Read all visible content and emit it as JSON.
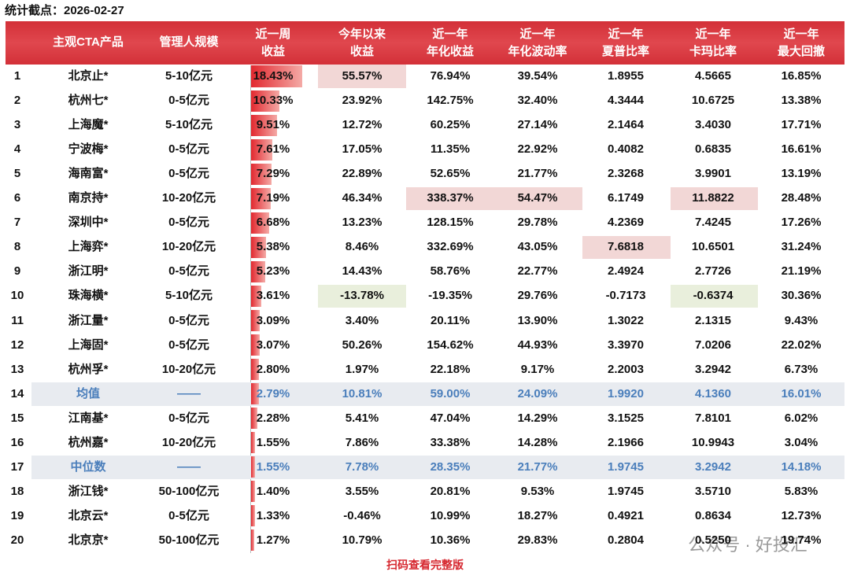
{
  "header": {
    "date_label": "统计截点：2026-02-27"
  },
  "table": {
    "columns": [
      [
        "主观CTA产品"
      ],
      [
        "管理人规模"
      ],
      [
        "近一周",
        "收益"
      ],
      [
        "今年以来",
        "收益"
      ],
      [
        "近一年",
        "年化收益"
      ],
      [
        "近一年",
        "年化波动率"
      ],
      [
        "近一年",
        "夏普比率"
      ],
      [
        "近一年",
        "卡玛比率"
      ],
      [
        "近一年",
        "最大回撤"
      ]
    ],
    "rows": [
      [
        "1",
        "北京止*",
        "5-10亿元",
        "18.43%",
        "55.57%",
        "76.94%",
        "39.54%",
        "1.8955",
        "4.5665",
        "16.85%"
      ],
      [
        "2",
        "杭州七*",
        "0-5亿元",
        "10.33%",
        "23.92%",
        "142.75%",
        "32.40%",
        "4.3444",
        "10.6725",
        "13.38%"
      ],
      [
        "3",
        "上海魔*",
        "5-10亿元",
        "9.51%",
        "12.72%",
        "60.25%",
        "27.14%",
        "2.1464",
        "3.4030",
        "17.71%"
      ],
      [
        "4",
        "宁波梅*",
        "0-5亿元",
        "7.61%",
        "17.05%",
        "11.35%",
        "22.92%",
        "0.4082",
        "0.6835",
        "16.61%"
      ],
      [
        "5",
        "海南富*",
        "0-5亿元",
        "7.29%",
        "22.89%",
        "52.65%",
        "21.77%",
        "2.3268",
        "3.9901",
        "13.19%"
      ],
      [
        "6",
        "南京持*",
        "10-20亿元",
        "7.19%",
        "46.34%",
        "338.37%",
        "54.47%",
        "6.1749",
        "11.8822",
        "28.48%"
      ],
      [
        "7",
        "深圳中*",
        "0-5亿元",
        "6.68%",
        "13.23%",
        "128.15%",
        "29.78%",
        "4.2369",
        "7.4245",
        "17.26%"
      ],
      [
        "8",
        "上海弈*",
        "10-20亿元",
        "5.38%",
        "8.46%",
        "332.69%",
        "43.05%",
        "7.6818",
        "10.6501",
        "31.24%"
      ],
      [
        "9",
        "浙江明*",
        "0-5亿元",
        "5.23%",
        "14.43%",
        "58.76%",
        "22.77%",
        "2.4924",
        "2.7726",
        "21.19%"
      ],
      [
        "10",
        "珠海横*",
        "5-10亿元",
        "3.61%",
        "-13.78%",
        "-19.35%",
        "29.76%",
        "-0.7173",
        "-0.6374",
        "30.36%"
      ],
      [
        "11",
        "浙江量*",
        "0-5亿元",
        "3.09%",
        "3.40%",
        "20.11%",
        "13.90%",
        "1.3022",
        "2.1315",
        "9.43%"
      ],
      [
        "12",
        "上海固*",
        "0-5亿元",
        "3.07%",
        "50.26%",
        "154.62%",
        "44.93%",
        "3.3970",
        "7.0206",
        "22.02%"
      ],
      [
        "13",
        "杭州孚*",
        "10-20亿元",
        "2.80%",
        "1.97%",
        "22.18%",
        "9.17%",
        "2.2003",
        "3.2942",
        "6.73%"
      ],
      [
        "14",
        "均值",
        "——",
        "2.79%",
        "10.81%",
        "59.00%",
        "24.09%",
        "1.9920",
        "4.1360",
        "16.01%"
      ],
      [
        "15",
        "江南基*",
        "0-5亿元",
        "2.28%",
        "5.41%",
        "47.04%",
        "14.29%",
        "3.1525",
        "7.8101",
        "6.02%"
      ],
      [
        "16",
        "杭州嘉*",
        "10-20亿元",
        "1.55%",
        "7.86%",
        "33.38%",
        "14.28%",
        "2.1966",
        "10.9943",
        "3.04%"
      ],
      [
        "17",
        "中位数",
        "——",
        "1.55%",
        "7.78%",
        "28.35%",
        "21.77%",
        "1.9745",
        "3.2942",
        "14.18%"
      ],
      [
        "18",
        "浙江钱*",
        "50-100亿元",
        "1.40%",
        "3.55%",
        "20.81%",
        "9.53%",
        "1.9745",
        "3.5710",
        "5.83%"
      ],
      [
        "19",
        "北京云*",
        "0-5亿元",
        "1.33%",
        "-0.46%",
        "10.99%",
        "18.27%",
        "0.4921",
        "0.8634",
        "12.73%"
      ],
      [
        "20",
        "北京京*",
        "50-100亿元",
        "1.27%",
        "10.79%",
        "10.36%",
        "29.83%",
        "0.2804",
        "0.5250",
        "19.74%"
      ]
    ]
  },
  "footer": {
    "link": "扫码查看完整版",
    "watermark": "公众号 · 好投汇"
  }
}
